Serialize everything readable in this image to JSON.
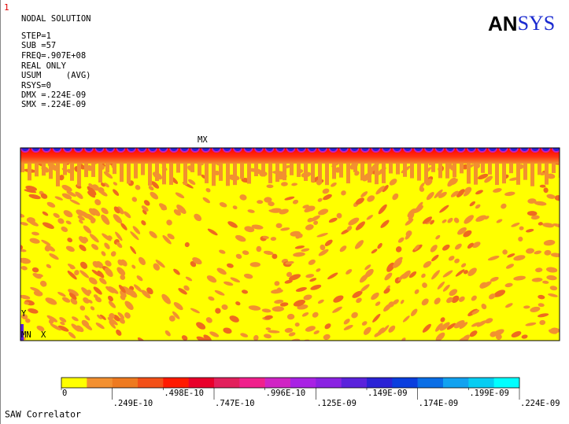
{
  "window_number": "1",
  "info": [
    "NODAL SOLUTION",
    "STEP=1",
    "SUB =57",
    "FREQ=.907E+08",
    "REAL ONLY",
    "USUM     (AVG)",
    "RSYS=0",
    "DMX =.224E-09",
    "SMX =.224E-09"
  ],
  "logo": {
    "bold": "AN",
    "rest": "SYS"
  },
  "max_label": "MX",
  "min_label": "MN",
  "triad": {
    "y": "Y",
    "x": "X"
  },
  "legend": {
    "colors": [
      "#ffff00",
      "#f29030",
      "#ee7a20",
      "#f25018",
      "#ff1a00",
      "#e8002a",
      "#e2205c",
      "#f0208c",
      "#d024c4",
      "#a822e4",
      "#8a22e2",
      "#5a22dc",
      "#2a22d6",
      "#0a3ede",
      "#0a6ee6",
      "#12a2f0",
      "#06cdf2",
      "#00ffff"
    ],
    "labels": [
      "0",
      ".249E-10",
      ".498E-10",
      ".747E-10",
      ".996E-10",
      ".125E-09",
      ".149E-09",
      ".174E-09",
      ".199E-09",
      ".224E-09"
    ]
  },
  "footer": "SAW Correlator"
}
